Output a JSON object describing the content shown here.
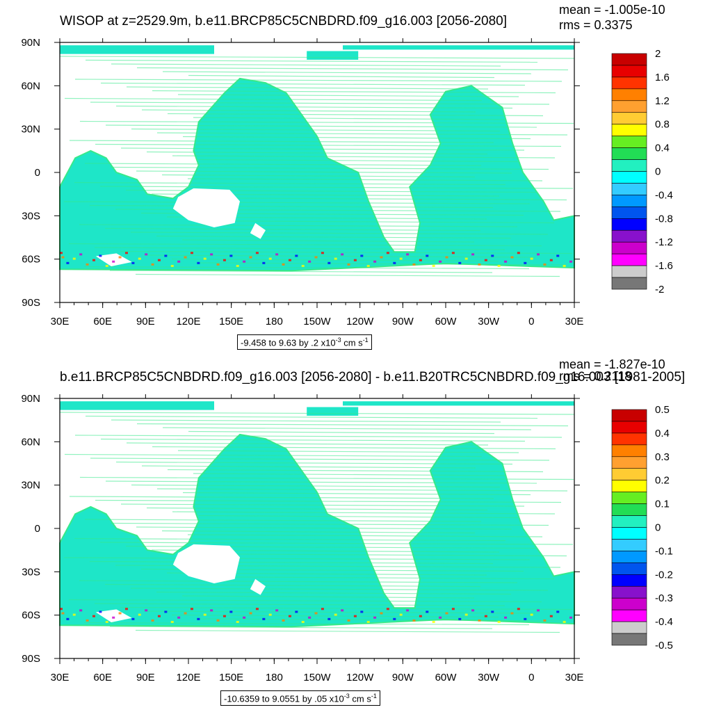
{
  "colors": {
    "ocean": "#1ee6c8",
    "ocean_alt": "#37e98a",
    "land": "#ffffff",
    "frame": "#000000"
  },
  "axes": {
    "lon_labels": [
      "30E",
      "60E",
      "90E",
      "120E",
      "150E",
      "180",
      "150W",
      "120W",
      "90W",
      "60W",
      "30W",
      "0",
      "30E"
    ],
    "lat_labels": [
      "90N",
      "60N",
      "30N",
      "0",
      "30S",
      "60S",
      "90S"
    ]
  },
  "panels": [
    {
      "title": "WISOP at z=2529.9m, b.e11.BRCP85C5CNBDRD.f09_g16.003 [2056-2080]",
      "mean": "mean = -1.005e-10",
      "rms": "rms = 0.3375",
      "range_text": "-9.458 to 9.63 by .2 x10",
      "range_exp": "-3",
      "range_unit": " cm s",
      "range_unit_exp": "-1",
      "colorbar": {
        "labels": [
          "2",
          "1.6",
          "1.2",
          "0.8",
          "0.4",
          "0",
          "-0.4",
          "-0.8",
          "-1.2",
          "-1.6",
          "-2"
        ],
        "colors": [
          "#c80000",
          "#e80000",
          "#ff3300",
          "#ff8000",
          "#ffa030",
          "#ffcc33",
          "#ffff00",
          "#66ee22",
          "#22dd55",
          "#22f0c0",
          "#00ffff",
          "#33ccff",
          "#0099ff",
          "#0055ee",
          "#0000ff",
          "#8811cc",
          "#cc00cc",
          "#ff00ff",
          "#cccccc",
          "#777777"
        ]
      }
    },
    {
      "title": "b.e11.BRCP85C5CNBDRD.f09_g16.003 [2056-2080] - b.e11.B20TRC5CNBDRD.f09_g16.003 [1981-2005]",
      "mean": "mean = -1.827e-10",
      "rms": "rms = 0.2118",
      "range_text": "-10.6359 to 9.0551 by .05 x10",
      "range_exp": "-3",
      "range_unit": " cm s",
      "range_unit_exp": "-1",
      "colorbar": {
        "labels": [
          "0.5",
          "0.4",
          "0.3",
          "0.2",
          "0.1",
          "0",
          "-0.1",
          "-0.2",
          "-0.3",
          "-0.4",
          "-0.5"
        ],
        "colors": [
          "#c80000",
          "#e80000",
          "#ff3300",
          "#ff8000",
          "#ffa030",
          "#ffcc33",
          "#ffff00",
          "#66ee22",
          "#22dd55",
          "#22f0c0",
          "#00ffff",
          "#33ccff",
          "#0099ff",
          "#0055ee",
          "#0000ff",
          "#8811cc",
          "#cc00cc",
          "#ff00ff",
          "#cccccc",
          "#777777"
        ]
      }
    }
  ]
}
